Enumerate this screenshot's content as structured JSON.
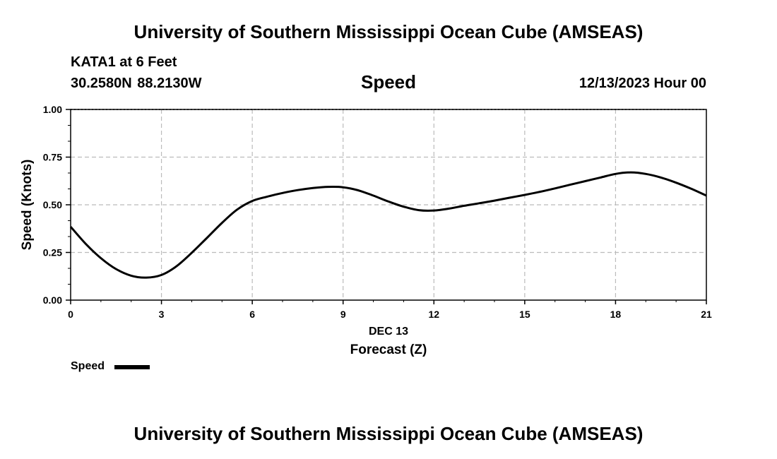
{
  "header": {
    "title": "University of Southern Mississippi Ocean Cube (AMSEAS)",
    "station": "KATA1 at 6 Feet",
    "coordinates": "30.2580N  88.2130W",
    "variable": "Speed",
    "datetime": "12/13/2023 Hour 00"
  },
  "footer": {
    "title": "University of Southern Mississippi Ocean Cube (AMSEAS)"
  },
  "legend": {
    "label": "Speed"
  },
  "chart_data": {
    "type": "line",
    "title": "Speed",
    "xlabel": "Forecast (Z)",
    "xlabel_date": "DEC 13",
    "ylabel": "Speed (Knots)",
    "xlim": [
      0,
      21
    ],
    "ylim": [
      0,
      1.0
    ],
    "xticks": [
      0,
      3,
      6,
      9,
      12,
      15,
      18,
      21
    ],
    "xtick_labels": [
      "0",
      "3",
      "6",
      "9",
      "12",
      "15",
      "18",
      "21"
    ],
    "yticks": [
      0,
      0.25,
      0.5,
      0.75,
      1.0
    ],
    "ytick_labels": [
      "0.00",
      "0.25",
      "0.50",
      "0.75",
      "1.00"
    ],
    "grid": true,
    "series": [
      {
        "name": "Speed",
        "color": "#000000",
        "x": [
          0,
          0.5,
          1,
          1.5,
          2,
          2.5,
          3,
          3.5,
          4,
          4.5,
          5,
          5.5,
          6,
          6.5,
          7,
          7.5,
          8,
          8.5,
          9,
          9.5,
          10,
          10.5,
          11,
          11.5,
          12,
          12.5,
          13,
          13.5,
          14,
          14.5,
          15,
          15.5,
          16,
          16.5,
          17,
          17.5,
          18,
          18.5,
          19,
          19.5,
          20,
          20.5,
          21
        ],
        "values": [
          0.385,
          0.295,
          0.22,
          0.163,
          0.128,
          0.118,
          0.132,
          0.178,
          0.248,
          0.326,
          0.405,
          0.475,
          0.52,
          0.543,
          0.562,
          0.577,
          0.588,
          0.594,
          0.592,
          0.576,
          0.548,
          0.517,
          0.49,
          0.472,
          0.47,
          0.48,
          0.495,
          0.508,
          0.522,
          0.537,
          0.552,
          0.568,
          0.586,
          0.605,
          0.624,
          0.643,
          0.662,
          0.67,
          0.662,
          0.643,
          0.616,
          0.584,
          0.548
        ]
      }
    ]
  }
}
